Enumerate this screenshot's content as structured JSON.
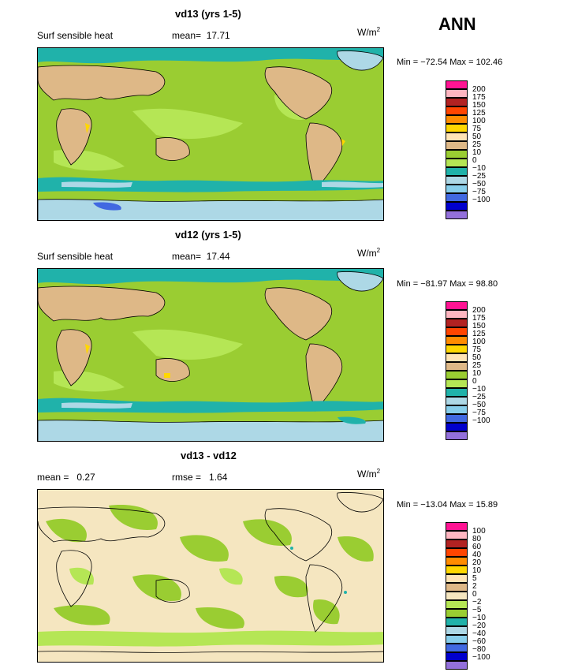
{
  "season": "ANN",
  "units_main": "W/m",
  "units_exp": "2",
  "panels": [
    {
      "title": "vd13 (yrs 1-5)",
      "left_label": "Surf sensible heat",
      "stat1_label": "mean=",
      "stat1_value": "17.71",
      "stat2_label": "",
      "stat2_value": "",
      "minmax": "Min = −72.54 Max = 102.46",
      "colorbar": {
        "colors": [
          "#ff1493",
          "#ffb6c1",
          "#b22222",
          "#ff4500",
          "#ff8c00",
          "#ffd700",
          "#ffe4b5",
          "#deb887",
          "#9acd32",
          "#b5e655",
          "#20b2aa",
          "#add8e6",
          "#87ceeb",
          "#4169e1",
          "#0000cd",
          "#9370db"
        ],
        "labels": [
          "200",
          "175",
          "150",
          "125",
          "100",
          "75",
          "50",
          "25",
          "10",
          "0",
          "−10",
          "−25",
          "−50",
          "−75",
          "−100"
        ]
      }
    },
    {
      "title": "vd12 (yrs 1-5)",
      "left_label": "Surf sensible heat",
      "stat1_label": "mean=",
      "stat1_value": "17.44",
      "stat2_label": "",
      "stat2_value": "",
      "minmax": "Min = −81.97 Max =  98.80",
      "colorbar": {
        "colors": [
          "#ff1493",
          "#ffb6c1",
          "#b22222",
          "#ff4500",
          "#ff8c00",
          "#ffd700",
          "#ffe4b5",
          "#deb887",
          "#9acd32",
          "#b5e655",
          "#20b2aa",
          "#add8e6",
          "#87ceeb",
          "#4169e1",
          "#0000cd",
          "#9370db"
        ],
        "labels": [
          "200",
          "175",
          "150",
          "125",
          "100",
          "75",
          "50",
          "25",
          "10",
          "0",
          "−10",
          "−25",
          "−50",
          "−75",
          "−100"
        ]
      }
    },
    {
      "title": "vd13 - vd12",
      "left_label": "",
      "stat1_label": "mean =",
      "stat1_value": "0.27",
      "stat2_label": "rmse =",
      "stat2_value": "1.64",
      "minmax": "Min = −13.04 Max =  15.89",
      "colorbar": {
        "colors": [
          "#ff1493",
          "#ffb6c1",
          "#b22222",
          "#ff4500",
          "#ff8c00",
          "#ffd700",
          "#ffe4b5",
          "#deb887",
          "#f5e6c0",
          "#b5e655",
          "#9acd32",
          "#20b2aa",
          "#add8e6",
          "#87ceeb",
          "#4169e1",
          "#0000cd",
          "#9370db"
        ],
        "labels": [
          "100",
          "80",
          "60",
          "40",
          "20",
          "10",
          "5",
          "2",
          "0",
          "−2",
          "−5",
          "−10",
          "−20",
          "−40",
          "−60",
          "−80",
          "−100"
        ]
      }
    }
  ]
}
